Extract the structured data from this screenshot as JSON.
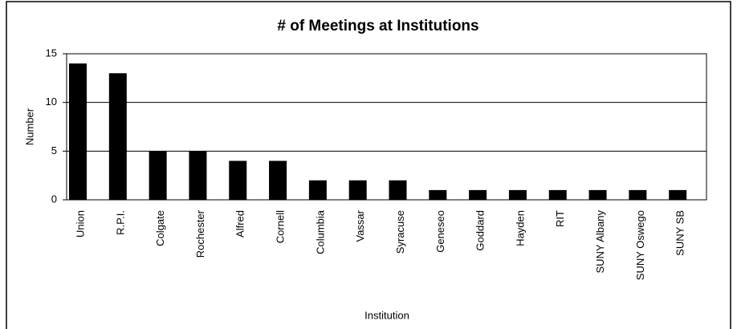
{
  "chart_data": {
    "type": "bar",
    "title": "# of Meetings at Institutions",
    "x_label": "Institution",
    "y_label": "Number",
    "categories": [
      "Union",
      "R.P.I.",
      "Colgate",
      "Rochester",
      "Alfred",
      "Cornell",
      "Columbia",
      "Vassar",
      "Syracuse",
      "Geneseo",
      "Goddard",
      "Hayden",
      "RIT",
      "SUNY Albany",
      "SUNY Oswego",
      "SUNY SB"
    ],
    "values": [
      14,
      13,
      5,
      5,
      4,
      4,
      2,
      2,
      2,
      1,
      1,
      1,
      1,
      1,
      1,
      1
    ],
    "color": "#000000",
    "ylim": [
      0,
      15
    ],
    "yticks": [
      0,
      5,
      10,
      15
    ],
    "grid": true
  }
}
